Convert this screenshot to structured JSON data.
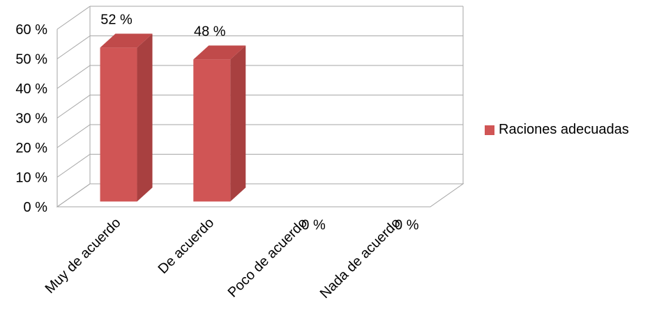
{
  "chart_data": {
    "type": "bar",
    "categories": [
      "Muy de acuerdo",
      "De acuerdo",
      "Poco de acuerdo",
      "Nada de acuerdo"
    ],
    "series": [
      {
        "name": "Raciones adecuadas",
        "values": [
          52,
          48,
          0,
          0
        ]
      }
    ],
    "data_labels": [
      "52 %",
      "48 %",
      "0 %",
      "0 %"
    ],
    "y_tick_labels": [
      "0 %",
      "10 %",
      "20 %",
      "30 %",
      "40 %",
      "50 %",
      "60 %"
    ],
    "ylim": [
      0,
      60
    ],
    "grid": true,
    "legend_position": "right",
    "bar_style": "3d",
    "colors": {
      "bar_front": "#D05555",
      "bar_side": "#A84040",
      "bar_top": "#C04A4A",
      "grid": "#A6A6A6"
    }
  }
}
